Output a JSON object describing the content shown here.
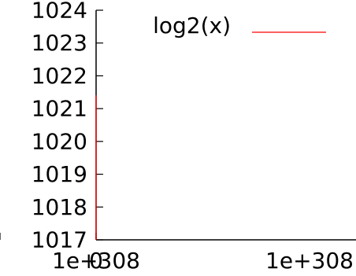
{
  "chart_data": {
    "type": "line",
    "title": "",
    "xlabel": "",
    "ylabel": "",
    "x_tick_labels": [
      "1e+308",
      "0",
      "1e+308"
    ],
    "x_tick_values": [
      -1e+308,
      0,
      1e+308
    ],
    "y_tick_labels": [
      "1017",
      "1018",
      "1019",
      "1020",
      "1021",
      "1022",
      "1023",
      "1024"
    ],
    "y_tick_values": [
      1017,
      1018,
      1019,
      1020,
      1021,
      1022,
      1023,
      1024
    ],
    "xlim": [
      -1.5e+308,
      1.6e+308
    ],
    "ylim": [
      1017,
      1024
    ],
    "grid": false,
    "legend_position": "top-right",
    "series": [
      {
        "name": "log2(x)",
        "color": "#ff0000",
        "function": "log2(x)"
      }
    ]
  }
}
